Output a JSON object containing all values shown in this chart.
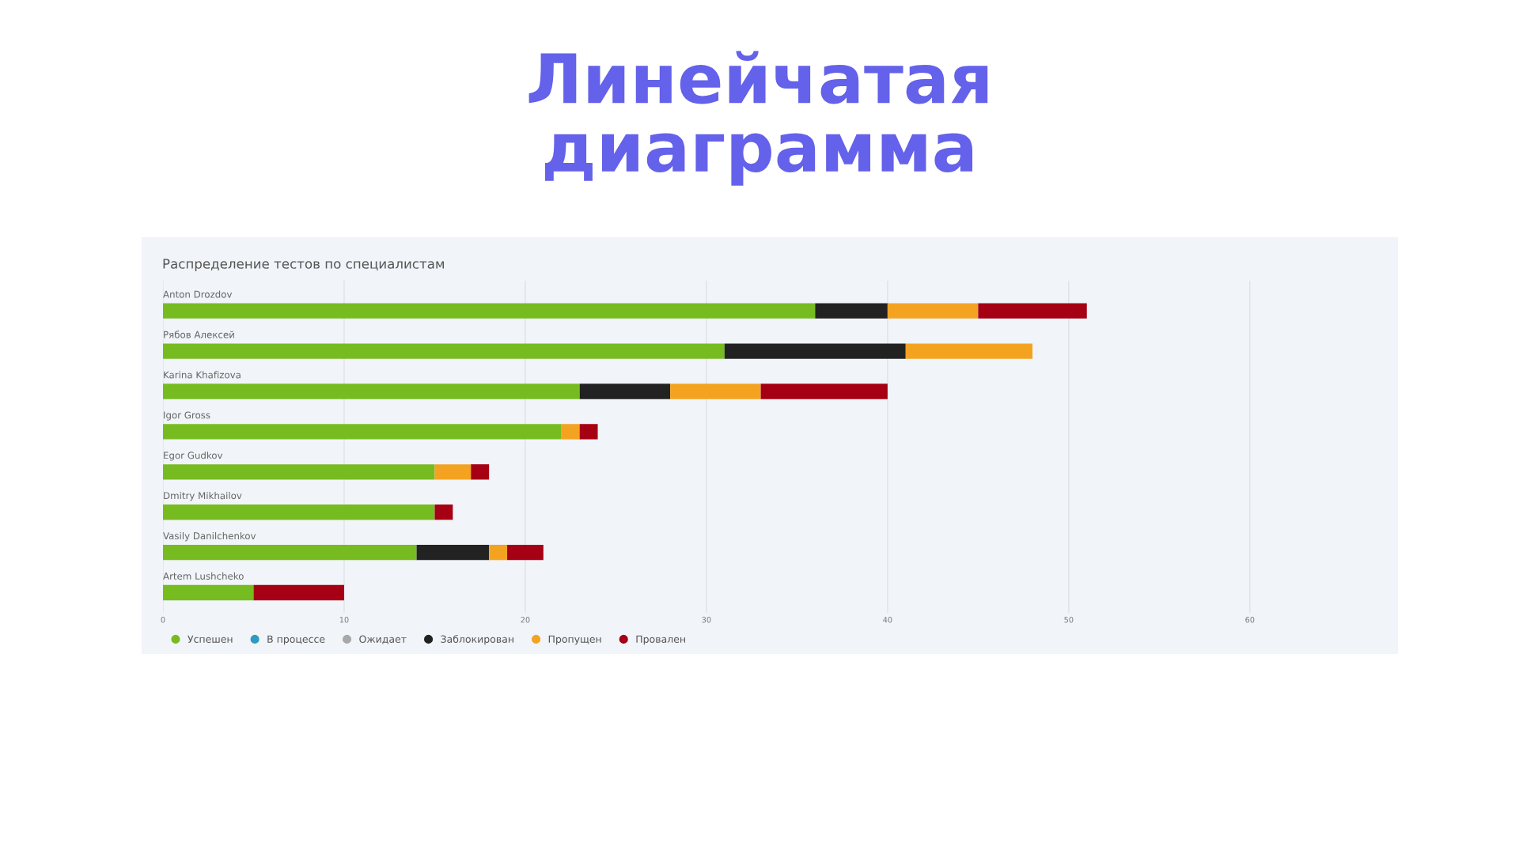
{
  "chart_data": {
    "type": "bar",
    "orientation": "horizontal",
    "stacked": true,
    "title": "Линейчатая\nдиаграмма",
    "subtitle": "Распределение тестов по специалистам",
    "categories": [
      "Anton Drozdov",
      "Рябов Алексей",
      "Karina Khafizova",
      "Igor Gross",
      "Egor Gudkov",
      "Dmitry Mikhailov",
      "Vasily Danilchenkov",
      "Artem Lushcheko"
    ],
    "series": [
      {
        "name": "Успешен",
        "color": "#76bc21",
        "values": [
          36,
          31,
          23,
          22,
          15,
          15,
          14,
          5
        ]
      },
      {
        "name": "В процессе",
        "color": "#2e9bbf",
        "values": [
          0,
          0,
          0,
          0,
          0,
          0,
          0,
          0
        ]
      },
      {
        "name": "Ожидает",
        "color": "#a8a8a8",
        "values": [
          0,
          0,
          0,
          0,
          0,
          0,
          0,
          0
        ]
      },
      {
        "name": "Заблокирован",
        "color": "#222222",
        "values": [
          4,
          10,
          5,
          0,
          0,
          0,
          4,
          0
        ]
      },
      {
        "name": "Пропущен",
        "color": "#f4a321",
        "values": [
          5,
          7,
          5,
          1,
          2,
          0,
          1,
          0
        ]
      },
      {
        "name": "Провален",
        "color": "#a50013",
        "values": [
          6,
          0,
          7,
          1,
          1,
          1,
          2,
          5
        ]
      }
    ],
    "xlim": [
      0,
      68
    ],
    "xticks": [
      0,
      10,
      20,
      30,
      40,
      50,
      60
    ],
    "grid": "x",
    "legend": "bottom"
  }
}
